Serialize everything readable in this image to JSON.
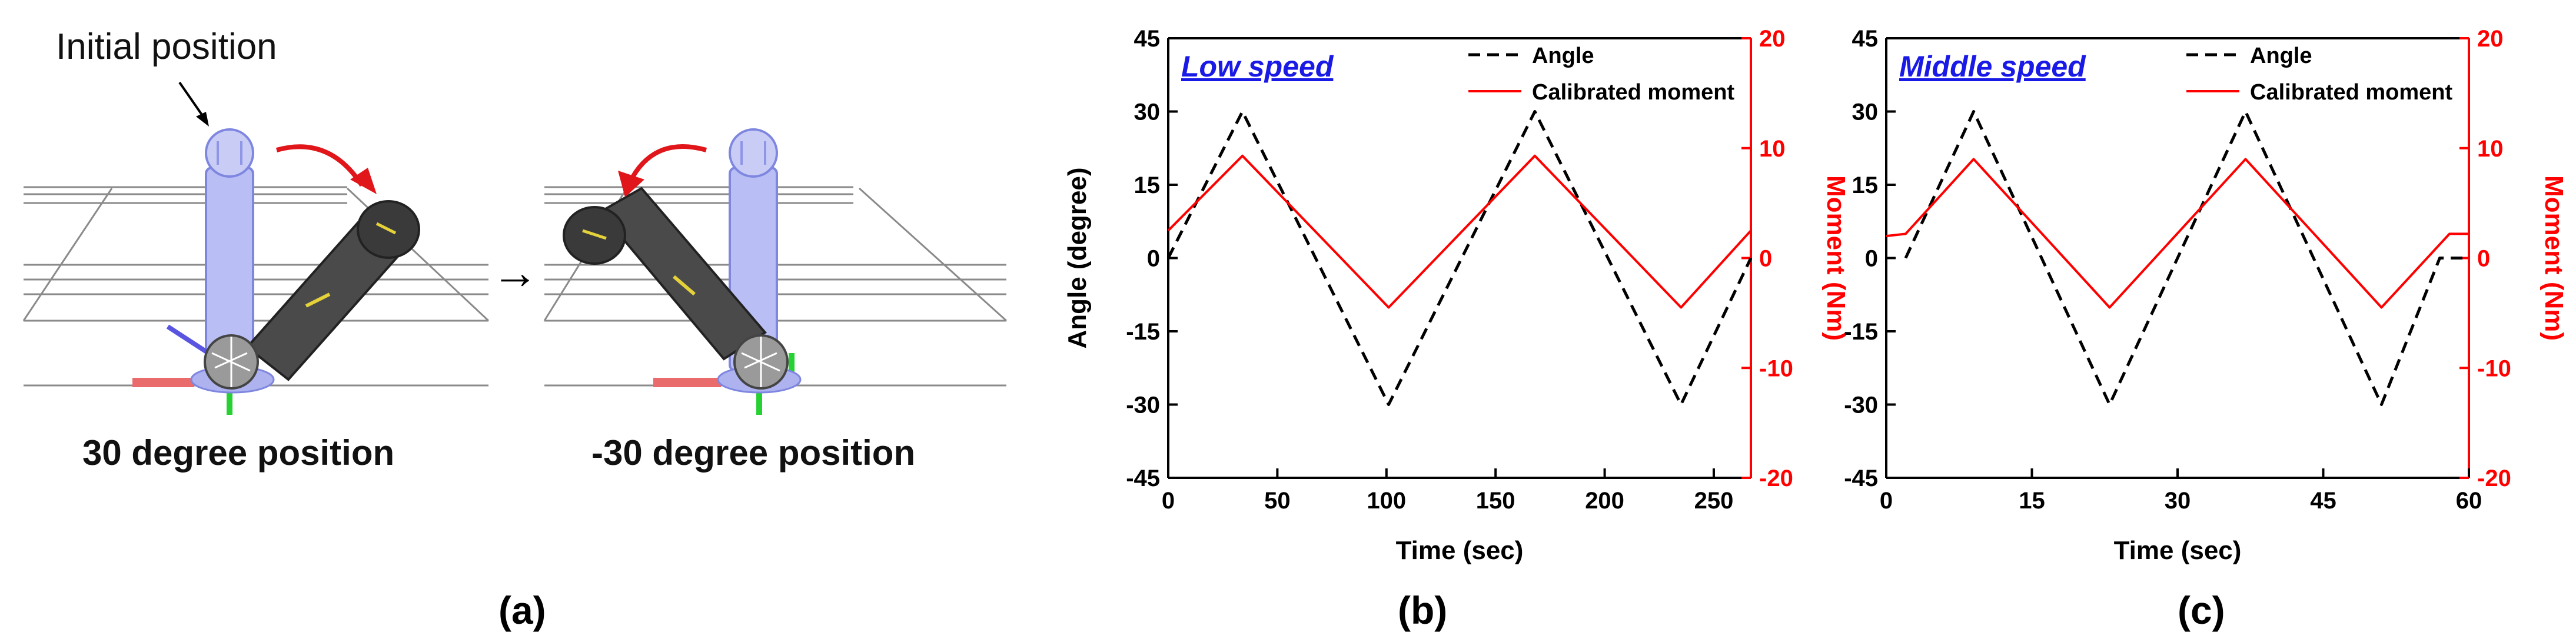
{
  "panel_a": {
    "label": "(a)",
    "initial_position_label": "Initial position",
    "left_caption": "30 degree position",
    "right_caption": "-30 degree position",
    "arrow_glyph": "→",
    "colors": {
      "ghost": "#b9bff4",
      "arm": "#4a4a4a",
      "arrow_red": "#e0161b",
      "axis_red": "#e96b6b",
      "axis_green": "#27d134",
      "axis_blue": "#5a55e0"
    }
  },
  "panel_b": {
    "label": "(b)"
  },
  "panel_c": {
    "label": "(c)"
  },
  "chart_data": [
    {
      "type": "line",
      "title": "Low speed",
      "xlabel": "Time (sec)",
      "ylabel": "Angle (degree)",
      "y2label": "Moment (Nm)",
      "xlim": [
        0,
        267
      ],
      "xticks": [
        0,
        50,
        100,
        150,
        200,
        250
      ],
      "xtick_labels": [
        "0",
        "50",
        "100",
        "150",
        "200",
        "250"
      ],
      "ylim": [
        -45,
        45
      ],
      "yticks": [
        -45,
        -30,
        -15,
        0,
        15,
        30,
        45
      ],
      "ytick_labels": [
        "-45",
        "-30",
        "-15",
        "0",
        "15",
        "30",
        "45"
      ],
      "y2lim": [
        -20,
        20
      ],
      "y2ticks": [
        -20,
        -10,
        0,
        10,
        20
      ],
      "y2tick_labels": [
        "-20",
        "-10",
        "0",
        "10",
        "20"
      ],
      "legend": [
        "Angle",
        "Calibrated moment"
      ],
      "legend_position": "top-right",
      "series": [
        {
          "name": "Angle",
          "axis": "left",
          "style": "dashed",
          "color": "#000000",
          "x": [
            0,
            34,
            101,
            168,
            235,
            267
          ],
          "y": [
            0,
            30,
            -30,
            30,
            -30,
            0
          ]
        },
        {
          "name": "Calibrated moment",
          "axis": "right",
          "style": "solid",
          "color": "#ff0000",
          "x": [
            0,
            34,
            101,
            168,
            235,
            267
          ],
          "y": [
            2.5,
            9.3,
            -4.5,
            9.3,
            -4.5,
            2.5
          ]
        }
      ]
    },
    {
      "type": "line",
      "title": "Middle speed",
      "xlabel": "Time (sec)",
      "ylabel": "",
      "y2label": "Moment (Nm)",
      "xlim": [
        0,
        60
      ],
      "xticks": [
        0,
        15,
        30,
        45,
        60
      ],
      "xtick_labels": [
        "0",
        "15",
        "30",
        "45",
        "60"
      ],
      "ylim": [
        -45,
        45
      ],
      "yticks": [
        -45,
        -30,
        -15,
        0,
        15,
        30,
        45
      ],
      "ytick_labels": [
        "-45",
        "-30",
        "-15",
        "0",
        "15",
        "30",
        "45"
      ],
      "y2lim": [
        -20,
        20
      ],
      "y2ticks": [
        -20,
        -10,
        0,
        10,
        20
      ],
      "y2tick_labels": [
        "-20",
        "-10",
        "0",
        "10",
        "20"
      ],
      "legend": [
        "Angle",
        "Calibrated moment"
      ],
      "legend_position": "top-right",
      "series": [
        {
          "name": "Angle",
          "axis": "left",
          "style": "dashed",
          "color": "#000000",
          "x": [
            2,
            9,
            23,
            37,
            51,
            57,
            60
          ],
          "y": [
            0,
            30,
            -30,
            30,
            -30,
            0,
            0
          ]
        },
        {
          "name": "Calibrated moment",
          "axis": "right",
          "style": "solid",
          "color": "#ff0000",
          "x": [
            0,
            2,
            9,
            23,
            37,
            51,
            58,
            60
          ],
          "y": [
            2,
            2.2,
            9,
            -4.5,
            9,
            -4.5,
            2.2,
            2.2
          ]
        }
      ]
    }
  ]
}
